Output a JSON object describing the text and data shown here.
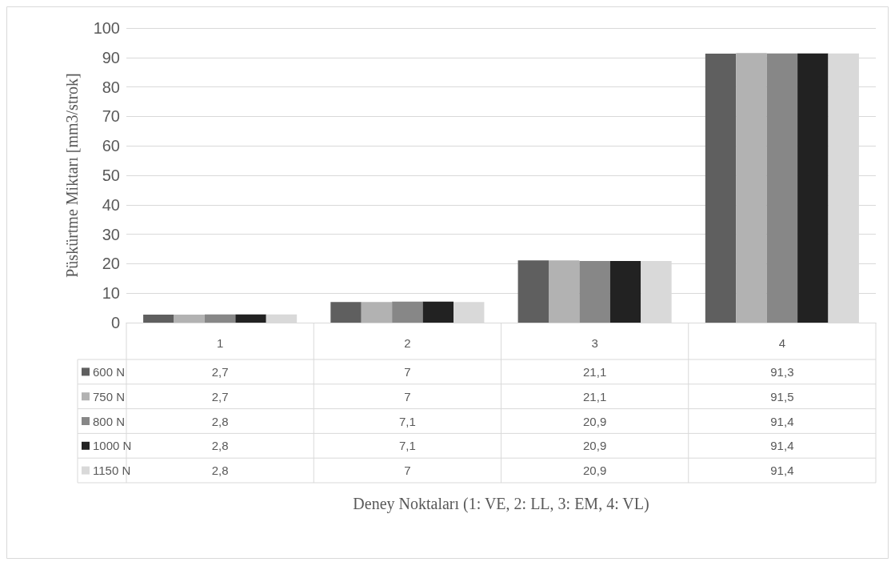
{
  "chart_data": {
    "type": "bar",
    "annotations": [
      "Deney Noktaları (1: VE, 2: LL, 3: EM, 4: VL)"
    ],
    "ylabel": "Püskürtme Miktarı [mm3/strok]",
    "categories": [
      "1",
      "2",
      "3",
      "4"
    ],
    "series": [
      {
        "name": "600 N",
        "color": "#5f5f5f",
        "values": [
          2.7,
          7,
          21.1,
          91.3
        ],
        "value_labels": [
          "2,7",
          "7",
          "21,1",
          "91,3"
        ]
      },
      {
        "name": "750 N",
        "color": "#b2b2b2",
        "values": [
          2.7,
          7,
          21.1,
          91.5
        ],
        "value_labels": [
          "2,7",
          "7",
          "21,1",
          "91,5"
        ]
      },
      {
        "name": "800 N",
        "color": "#878787",
        "values": [
          2.8,
          7.1,
          20.9,
          91.4
        ],
        "value_labels": [
          "2,8",
          "7,1",
          "20,9",
          "91,4"
        ]
      },
      {
        "name": "1000 N",
        "color": "#222222",
        "values": [
          2.8,
          7.1,
          20.9,
          91.4
        ],
        "value_labels": [
          "2,8",
          "7,1",
          "20,9",
          "91,4"
        ]
      },
      {
        "name": "1150 N",
        "color": "#d9d9d9",
        "values": [
          2.8,
          7,
          20.9,
          91.4
        ],
        "value_labels": [
          "2,8",
          "7",
          "20,9",
          "91,4"
        ]
      }
    ],
    "ylim": [
      0,
      100
    ],
    "yticks": [
      0,
      10,
      20,
      30,
      40,
      50,
      60,
      70,
      80,
      90,
      100
    ],
    "grid": "y",
    "legend": "bottom"
  }
}
